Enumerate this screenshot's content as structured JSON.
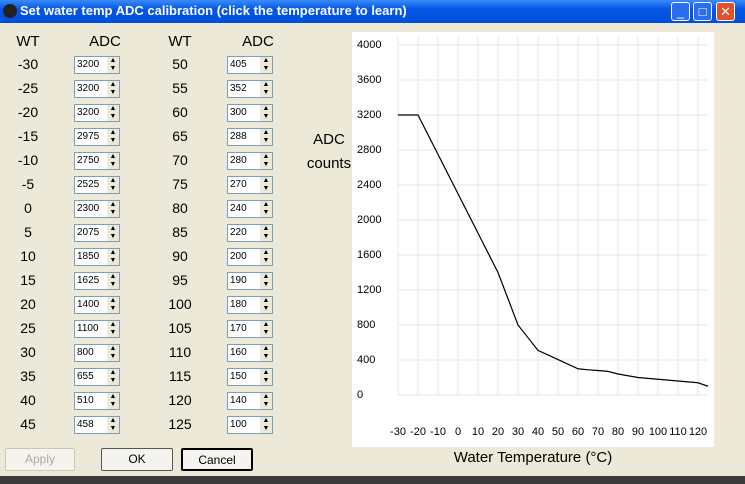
{
  "window": {
    "title": "Set water temp ADC calibration (click the temperature to learn)"
  },
  "table": {
    "headers": [
      "WT",
      "ADC",
      "WT",
      "ADC"
    ],
    "points": [
      {
        "wt": -30,
        "adc": 3200
      },
      {
        "wt": -25,
        "adc": 3200
      },
      {
        "wt": -20,
        "adc": 3200
      },
      {
        "wt": -15,
        "adc": 2975
      },
      {
        "wt": -10,
        "adc": 2750
      },
      {
        "wt": -5,
        "adc": 2525
      },
      {
        "wt": 0,
        "adc": 2300
      },
      {
        "wt": 5,
        "adc": 2075
      },
      {
        "wt": 10,
        "adc": 1850
      },
      {
        "wt": 15,
        "adc": 1625
      },
      {
        "wt": 20,
        "adc": 1400
      },
      {
        "wt": 25,
        "adc": 1100
      },
      {
        "wt": 30,
        "adc": 800
      },
      {
        "wt": 35,
        "adc": 655
      },
      {
        "wt": 40,
        "adc": 510
      },
      {
        "wt": 45,
        "adc": 458
      },
      {
        "wt": 50,
        "adc": 405
      },
      {
        "wt": 55,
        "adc": 352
      },
      {
        "wt": 60,
        "adc": 300
      },
      {
        "wt": 65,
        "adc": 288
      },
      {
        "wt": 70,
        "adc": 280
      },
      {
        "wt": 75,
        "adc": 270
      },
      {
        "wt": 80,
        "adc": 240
      },
      {
        "wt": 85,
        "adc": 220
      },
      {
        "wt": 90,
        "adc": 200
      },
      {
        "wt": 95,
        "adc": 190
      },
      {
        "wt": 100,
        "adc": 180
      },
      {
        "wt": 105,
        "adc": 170
      },
      {
        "wt": 110,
        "adc": 160
      },
      {
        "wt": 115,
        "adc": 150
      },
      {
        "wt": 120,
        "adc": 140
      },
      {
        "wt": 125,
        "adc": 100
      }
    ]
  },
  "chart_data": {
    "type": "line",
    "y_label": "ADC counts",
    "x_label": "Water Temperature (°C)",
    "xlim": [
      -30,
      125
    ],
    "ylim": [
      0,
      4000
    ],
    "xticks": [
      -30,
      -20,
      -10,
      0,
      10,
      20,
      30,
      40,
      50,
      60,
      70,
      80,
      90,
      100,
      110,
      120
    ],
    "yticks": [
      0,
      400,
      800,
      1200,
      1600,
      2000,
      2400,
      2800,
      3200,
      3600,
      4000
    ],
    "grid": true,
    "color": "#000000"
  },
  "buttons": {
    "apply": "Apply",
    "ok": "OK",
    "cancel": "Cancel"
  }
}
